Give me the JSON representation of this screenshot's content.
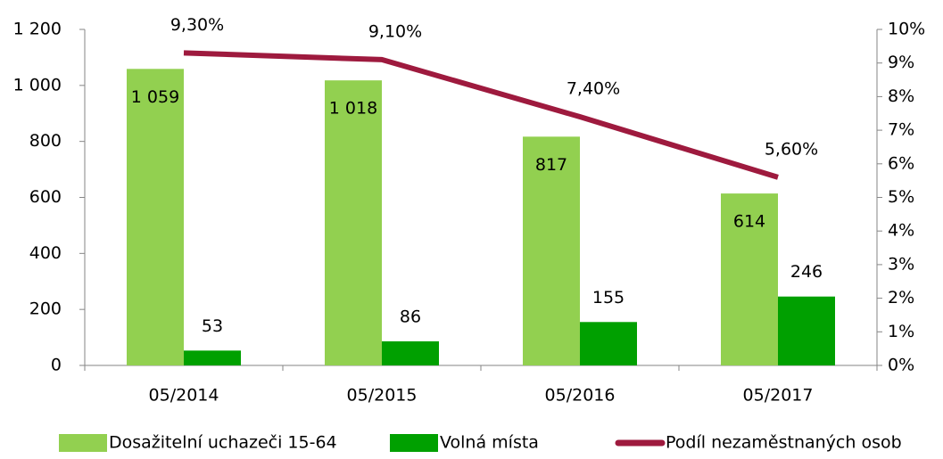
{
  "chart_data": {
    "type": "bar_line",
    "categories": [
      "05/2014",
      "05/2015",
      "05/2016",
      "05/2017"
    ],
    "series": [
      {
        "name": "Dosažitelní uchazeči 15-64",
        "color": "#92d050",
        "type": "bar",
        "values": [
          1059,
          1018,
          817,
          614
        ],
        "value_labels": [
          "1 059",
          "1 018",
          "817",
          "614"
        ]
      },
      {
        "name": "Volná místa",
        "color": "#00a000",
        "type": "bar",
        "values": [
          53,
          86,
          155,
          246
        ]
      },
      {
        "name": "Podíl nezaměstnaných osob",
        "color": "#9e1a3e",
        "type": "line",
        "axis": "y2",
        "values": [
          9.3,
          9.1,
          7.4,
          5.6
        ],
        "value_labels": [
          "9,30%",
          "9,10%",
          "7,40%",
          "5,60%"
        ]
      }
    ],
    "ylim": [
      0,
      1200
    ],
    "yticks": [
      0,
      200,
      400,
      600,
      800,
      {
        "value": 1000,
        "label": "1 000"
      },
      {
        "value": 1200,
        "label": "1 200"
      }
    ],
    "y2lim": [
      0,
      10
    ],
    "y2ticks": [
      {
        "value": 0,
        "label": "0%"
      },
      {
        "value": 1,
        "label": "1%"
      },
      {
        "value": 2,
        "label": "2%"
      },
      {
        "value": 3,
        "label": "3%"
      },
      {
        "value": 4,
        "label": "4%"
      },
      {
        "value": 5,
        "label": "5%"
      },
      {
        "value": 6,
        "label": "6%"
      },
      {
        "value": 7,
        "label": "7%"
      },
      {
        "value": 8,
        "label": "8%"
      },
      {
        "value": 9,
        "label": "9%"
      },
      {
        "value": 10,
        "label": "10%"
      }
    ],
    "legend": "bottom"
  }
}
